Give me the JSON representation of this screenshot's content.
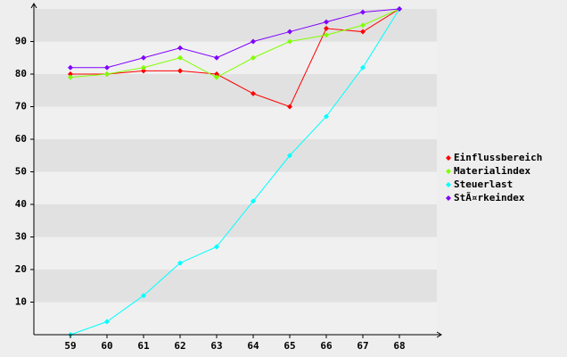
{
  "chart_data": {
    "type": "line",
    "categories": [
      "59",
      "60",
      "61",
      "62",
      "63",
      "64",
      "65",
      "66",
      "67",
      "68"
    ],
    "series": [
      {
        "name": "Einflussbereich",
        "color": "#ff0000",
        "values": [
          80,
          80,
          81,
          81,
          80,
          74,
          70,
          94,
          93,
          100
        ]
      },
      {
        "name": "Materialindex",
        "color": "#80ff00",
        "values": [
          79,
          80,
          82,
          85,
          79,
          85,
          90,
          92,
          95,
          100
        ]
      },
      {
        "name": "Steuerlast",
        "color": "#00ffff",
        "values": [
          0,
          4,
          12,
          22,
          27,
          41,
          55,
          67,
          82,
          100
        ]
      },
      {
        "name": "StÃ¤rkeindex",
        "color": "#8000ff",
        "values": [
          82,
          82,
          85,
          88,
          85,
          90,
          93,
          96,
          99,
          100
        ]
      }
    ],
    "ylim": [
      0,
      100
    ],
    "yticks": [
      10,
      20,
      30,
      40,
      50,
      60,
      70,
      80,
      90
    ],
    "grid": true,
    "legend": "right"
  }
}
